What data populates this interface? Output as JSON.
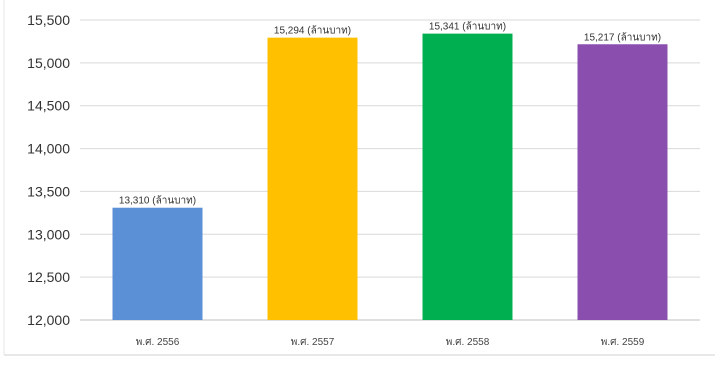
{
  "chart_data": {
    "type": "bar",
    "categories": [
      "พ.ศ. 2556",
      "พ.ศ. 2557",
      "พ.ศ. 2558",
      "พ.ศ. 2559"
    ],
    "values": [
      13310,
      15294,
      15341,
      15217
    ],
    "data_labels": [
      "13,310 (ล้านบาท)",
      "15,294 (ล้านบาท)",
      "15,341 (ล้านบาท)",
      "15,217 (ล้านบาท)"
    ],
    "bar_colors": [
      "#5b8fd6",
      "#ffc000",
      "#00b050",
      "#8a4fae"
    ],
    "ylim": [
      12000,
      15500
    ],
    "yticks": [
      12000,
      12500,
      13000,
      13500,
      14000,
      14500,
      15000,
      15500
    ],
    "ytick_labels": [
      "12,000",
      "12,500",
      "13,000",
      "13,500",
      "14,000",
      "14,500",
      "15,000",
      "15,500"
    ],
    "grid": true,
    "legend": "none",
    "title": "",
    "xlabel": "",
    "ylabel": ""
  }
}
